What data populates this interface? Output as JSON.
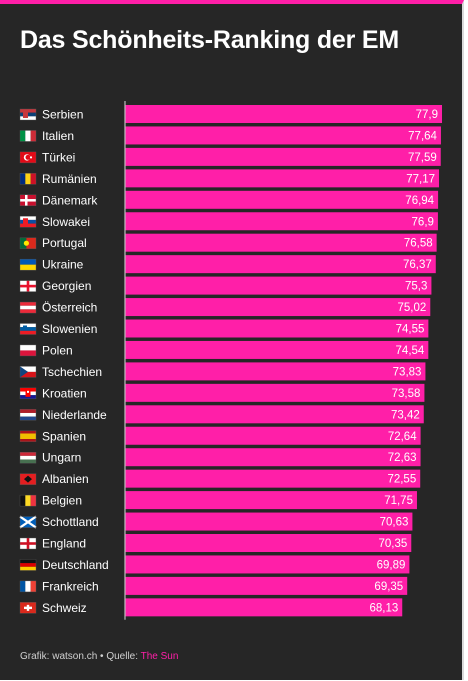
{
  "header": {
    "title": "Das Schönheits-Ranking der EM"
  },
  "footer": {
    "credit": "Grafik: watson.ch",
    "separator": " • ",
    "source_label": "Quelle: ",
    "source": "The Sun"
  },
  "colors": {
    "background": "#262626",
    "bar": "#ff1fa8",
    "accent": "#ff1fa8",
    "text": "#ffffff"
  },
  "chart_data": {
    "type": "bar",
    "orientation": "horizontal",
    "xlim": [
      0,
      77.9
    ],
    "categories": [
      "Serbien",
      "Italien",
      "Türkei",
      "Rumänien",
      "Dänemark",
      "Slowakei",
      "Portugal",
      "Ukraine",
      "Georgien",
      "Österreich",
      "Slowenien",
      "Polen",
      "Tschechien",
      "Kroatien",
      "Niederlande",
      "Spanien",
      "Ungarn",
      "Albanien",
      "Belgien",
      "Schottland",
      "England",
      "Deutschland",
      "Frankreich",
      "Schweiz"
    ],
    "values": [
      77.9,
      77.64,
      77.59,
      77.17,
      76.94,
      76.9,
      76.58,
      76.37,
      75.3,
      75.02,
      74.55,
      74.54,
      73.83,
      73.58,
      73.42,
      72.64,
      72.63,
      72.55,
      71.75,
      70.63,
      70.35,
      69.89,
      69.35,
      68.13
    ],
    "value_labels": [
      "77,9",
      "77,64",
      "77,59",
      "77,17",
      "76,94",
      "76,9",
      "76,58",
      "76,37",
      "75,3",
      "75,02",
      "74,55",
      "74,54",
      "73,83",
      "73,58",
      "73,42",
      "72,64",
      "72,63",
      "72,55",
      "71,75",
      "70,63",
      "70,35",
      "69,89",
      "69,35",
      "68,13"
    ],
    "flags": [
      "serbia-flag-icon",
      "italy-flag-icon",
      "turkey-flag-icon",
      "romania-flag-icon",
      "denmark-flag-icon",
      "slovakia-flag-icon",
      "portugal-flag-icon",
      "ukraine-flag-icon",
      "georgia-flag-icon",
      "austria-flag-icon",
      "slovenia-flag-icon",
      "poland-flag-icon",
      "czechia-flag-icon",
      "croatia-flag-icon",
      "netherlands-flag-icon",
      "spain-flag-icon",
      "hungary-flag-icon",
      "albania-flag-icon",
      "belgium-flag-icon",
      "scotland-flag-icon",
      "england-flag-icon",
      "germany-flag-icon",
      "france-flag-icon",
      "switzerland-flag-icon"
    ]
  }
}
